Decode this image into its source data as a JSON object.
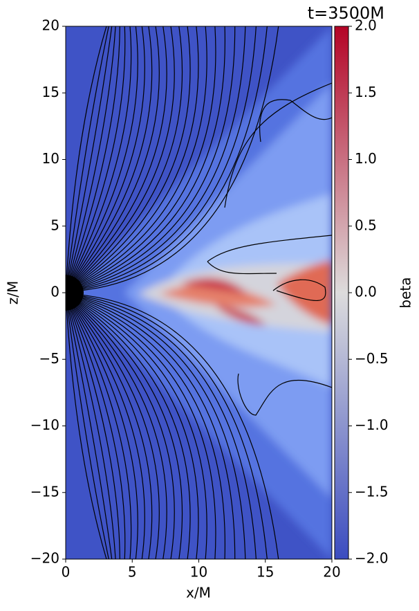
{
  "chart_data": {
    "type": "heatmap",
    "title": "t=3500M",
    "xlabel": "x/M",
    "ylabel": "z/M",
    "xlim": [
      0,
      20
    ],
    "ylim": [
      -20,
      20
    ],
    "xticks": [
      0,
      5,
      10,
      15,
      20
    ],
    "yticks": [
      {
        "value": -20,
        "label": "−20"
      },
      {
        "value": -15,
        "label": "−15"
      },
      {
        "value": -10,
        "label": "−10"
      },
      {
        "value": -5,
        "label": "−5"
      },
      0,
      5,
      10,
      15,
      20
    ],
    "colorbar": {
      "label": "beta",
      "lim": [
        -2,
        2
      ],
      "colormap": [
        "#3b4cc0",
        "#dddcdc",
        "#b40426"
      ],
      "ticks": [
        {
          "value": -2,
          "label": "−2.0"
        },
        {
          "value": -1.5,
          "label": "−1.5"
        },
        {
          "value": -1,
          "label": "−1.0"
        },
        {
          "value": -0.5,
          "label": "−0.5"
        },
        {
          "value": 0,
          "label": "0.0"
        },
        0.5,
        {
          "value": 1,
          "label": "1.0"
        },
        1.5,
        {
          "value": 2,
          "label": "2.0"
        }
      ]
    }
  }
}
